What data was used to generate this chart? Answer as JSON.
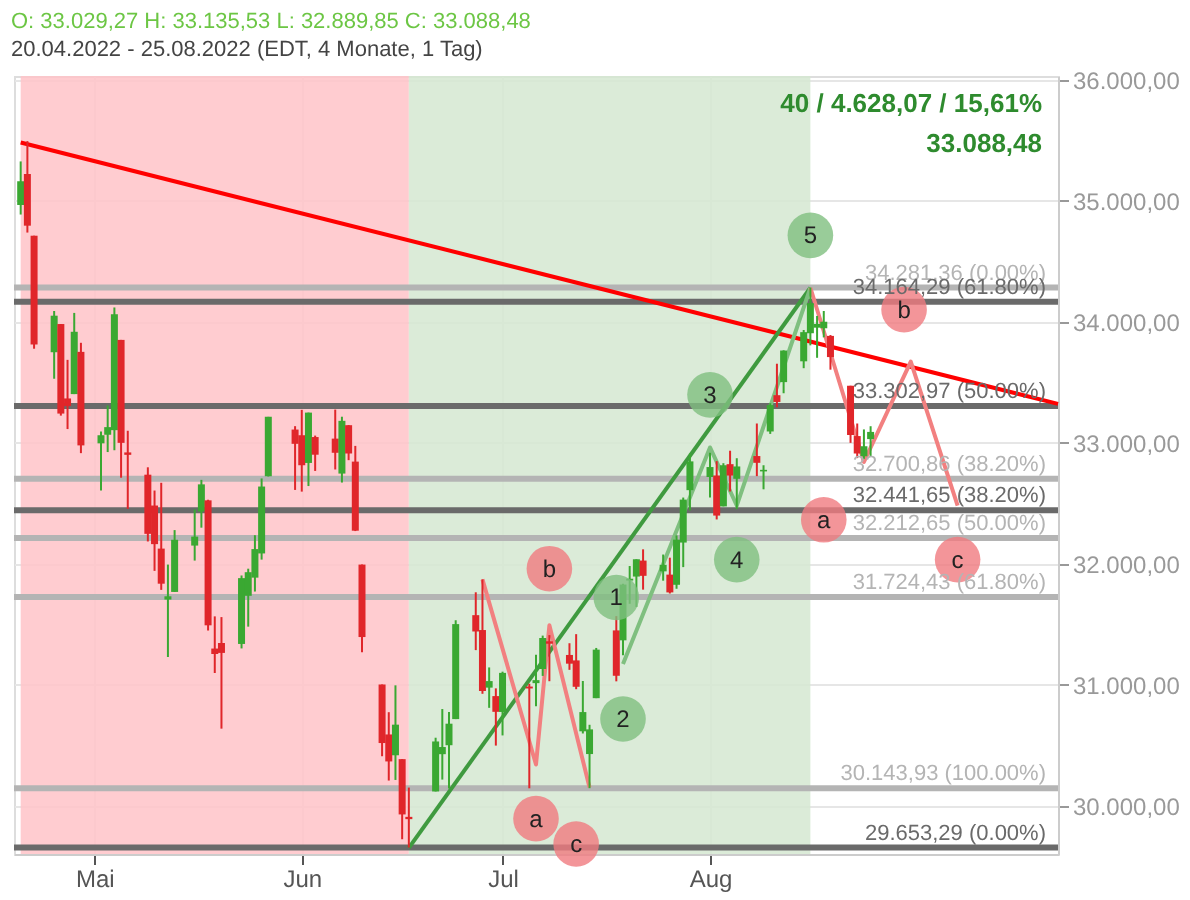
{
  "chart_data": {
    "type": "candlestick",
    "title": "O: 33.029,27  H: 33.135,53  L: 32.889,85  C: 33.088,48",
    "subtitle": "20.04.2022 - 25.08.2022   (EDT, 4 Monate, 1 Tag)",
    "x": [
      "2022-04-20",
      "2022-04-21",
      "2022-04-22",
      "2022-04-25",
      "2022-04-26",
      "2022-04-27",
      "2022-04-28",
      "2022-04-29",
      "2022-05-02",
      "2022-05-03",
      "2022-05-04",
      "2022-05-05",
      "2022-05-06",
      "2022-05-09",
      "2022-05-10",
      "2022-05-11",
      "2022-05-12",
      "2022-05-13",
      "2022-05-16",
      "2022-05-17",
      "2022-05-18",
      "2022-05-19",
      "2022-05-20",
      "2022-05-23",
      "2022-05-24",
      "2022-05-25",
      "2022-05-26",
      "2022-05-27",
      "2022-05-31",
      "2022-06-01",
      "2022-06-02",
      "2022-06-03",
      "2022-06-06",
      "2022-06-07",
      "2022-06-08",
      "2022-06-09",
      "2022-06-10",
      "2022-06-13",
      "2022-06-14",
      "2022-06-15",
      "2022-06-16",
      "2022-06-17",
      "2022-06-21",
      "2022-06-22",
      "2022-06-23",
      "2022-06-24",
      "2022-06-27",
      "2022-06-28",
      "2022-06-29",
      "2022-06-30",
      "2022-07-01",
      "2022-07-05",
      "2022-07-06",
      "2022-07-07",
      "2022-07-08",
      "2022-07-11",
      "2022-07-12",
      "2022-07-13",
      "2022-07-14",
      "2022-07-15",
      "2022-07-18",
      "2022-07-19",
      "2022-07-20",
      "2022-07-21",
      "2022-07-22",
      "2022-07-25",
      "2022-07-26",
      "2022-07-27",
      "2022-07-28",
      "2022-07-29",
      "2022-08-01",
      "2022-08-02",
      "2022-08-03",
      "2022-08-04",
      "2022-08-05",
      "2022-08-08",
      "2022-08-09",
      "2022-08-10",
      "2022-08-11",
      "2022-08-12",
      "2022-08-15",
      "2022-08-16",
      "2022-08-17",
      "2022-08-18",
      "2022-08-19",
      "2022-08-22",
      "2022-08-23",
      "2022-08-24",
      "2022-08-25"
    ],
    "ohlc": [
      [
        34963,
        35324,
        34885,
        35160
      ],
      [
        35220,
        35492,
        34736,
        34793
      ],
      [
        34710,
        34710,
        33776,
        33811
      ],
      [
        33747,
        34088,
        33528,
        34049
      ],
      [
        33980,
        33980,
        33223,
        33240
      ],
      [
        33365,
        33684,
        33112,
        33302
      ],
      [
        33401,
        34072,
        33401,
        33916
      ],
      [
        33750,
        33825,
        32913,
        32977
      ],
      [
        32994,
        33092,
        32604,
        33061
      ],
      [
        33065,
        33307,
        32922,
        33128
      ],
      [
        33103,
        34117,
        32937,
        34061
      ],
      [
        33849,
        33849,
        32710,
        32998
      ],
      [
        32919,
        33098,
        32452,
        32899
      ],
      [
        32735,
        32796,
        32183,
        32246
      ],
      [
        32480,
        32604,
        31940,
        32161
      ],
      [
        32124,
        32668,
        31783,
        31834
      ],
      [
        31703,
        31992,
        31228,
        31730
      ],
      [
        31766,
        32277,
        31766,
        32197
      ],
      [
        32149,
        32448,
        32025,
        32223
      ],
      [
        32431,
        32692,
        32297,
        32655
      ],
      [
        32523,
        32528,
        31447,
        31490
      ],
      [
        31298,
        31564,
        31096,
        31253
      ],
      [
        31344,
        31558,
        30636,
        31262
      ],
      [
        31336,
        31902,
        31299,
        31880
      ],
      [
        31734,
        31958,
        31479,
        31929
      ],
      [
        31884,
        32235,
        31769,
        32120
      ],
      [
        32084,
        32704,
        32033,
        32637
      ],
      [
        32721,
        33213,
        32720,
        33213
      ],
      [
        33108,
        33136,
        32609,
        32990
      ],
      [
        33061,
        33271,
        32595,
        32813
      ],
      [
        32832,
        33248,
        32641,
        33248
      ],
      [
        33046,
        33058,
        32766,
        32900
      ],
      [
        33033,
        33273,
        32778,
        32916
      ],
      [
        32744,
        33214,
        32670,
        33180
      ],
      [
        33144,
        33145,
        32855,
        32910
      ],
      [
        32843,
        32973,
        32269,
        32272
      ],
      [
        31992,
        31992,
        31268,
        31393
      ],
      [
        31001,
        31001,
        30408,
        30517
      ],
      [
        30588,
        30772,
        30207,
        30365
      ],
      [
        30416,
        30994,
        30212,
        30669
      ],
      [
        30384,
        30384,
        29722,
        29927
      ],
      [
        29907,
        30149,
        29653.29,
        29888
      ],
      [
        30117,
        30561,
        30117,
        30530
      ],
      [
        30425,
        30798,
        30215,
        30484
      ],
      [
        30499,
        30774,
        30142,
        30677
      ],
      [
        30715,
        31532,
        30715,
        31500
      ],
      [
        31574,
        31763,
        31285,
        31439
      ],
      [
        31451,
        31870,
        30924,
        30947
      ],
      [
        30975,
        31142,
        30808,
        31029
      ],
      [
        30905,
        30969,
        30496,
        30775
      ],
      [
        30774,
        31107,
        30580,
        31097
      ],
      [
        30984,
        31007,
        30143,
        30968
      ],
      [
        31012,
        31246,
        30822,
        31037
      ],
      [
        31129,
        31405,
        31072,
        31385
      ],
      [
        31358,
        31409,
        31028,
        31338
      ],
      [
        31245,
        31342,
        31122,
        31173
      ],
      [
        31200,
        31417,
        30962,
        30982
      ],
      [
        30614,
        31030,
        30596,
        30773
      ],
      [
        30426,
        30668,
        30144,
        30630
      ],
      [
        30888,
        31303,
        30888,
        31289
      ],
      [
        31448,
        31566,
        31027,
        31073
      ],
      [
        31366,
        31834,
        31243,
        31827
      ],
      [
        31860,
        31980,
        31668,
        31875
      ],
      [
        31893,
        32036,
        31642,
        32036
      ],
      [
        32025,
        32118,
        31785,
        31899
      ],
      [
        31936,
        32075,
        31859,
        31990
      ],
      [
        31909,
        32049,
        31753,
        31762
      ],
      [
        31825,
        32233,
        31792,
        32198
      ],
      [
        32174,
        32546,
        31971,
        32529
      ],
      [
        32607,
        32910,
        32440,
        32845
      ],
      [
        32716,
        32916,
        32547,
        32798
      ],
      [
        32728,
        32847,
        32365,
        32397
      ],
      [
        32473,
        32830,
        32473,
        32813
      ],
      [
        32822,
        32933,
        32596,
        32727
      ],
      [
        32701,
        32871,
        32450,
        32803
      ],
      [
        32889,
        33158,
        32723,
        32833
      ],
      [
        32762,
        32813,
        32614,
        32775
      ],
      [
        33092,
        33326,
        33072,
        33310
      ],
      [
        33392,
        33652,
        33292,
        33336
      ],
      [
        33500,
        33763,
        33408,
        33761
      ],
      [
        33672,
        33931,
        33615,
        33913
      ],
      [
        33904,
        34281.36,
        33804,
        34152
      ],
      [
        33950,
        34047,
        33701,
        33981
      ],
      [
        33945,
        34088,
        33870,
        33999
      ],
      [
        33882,
        33889,
        33603,
        33707
      ],
      [
        33470,
        33470,
        32998,
        33063
      ],
      [
        33054,
        33158,
        32872,
        32910
      ],
      [
        32887,
        33109,
        32866,
        32970
      ],
      [
        33029.27,
        33135.53,
        32889.85,
        33088.48
      ]
    ],
    "colors": [
      "#3aa832",
      "#e0262a",
      "#e0262a",
      "#3aa832",
      "#e0262a",
      "#e0262a",
      "#3aa832",
      "#e0262a",
      "#3aa832",
      "#3aa832",
      "#3aa832",
      "#e0262a",
      "#e0262a",
      "#e0262a",
      "#e0262a",
      "#e0262a",
      "#3aa832",
      "#3aa832",
      "#3aa832",
      "#3aa832",
      "#e0262a",
      "#e0262a",
      "#e0262a",
      "#3aa832",
      "#3aa832",
      "#3aa832",
      "#3aa832",
      "#3aa832",
      "#e0262a",
      "#e0262a",
      "#3aa832",
      "#e0262a",
      "#e0262a",
      "#3aa832",
      "#e0262a",
      "#e0262a",
      "#e0262a",
      "#e0262a",
      "#e0262a",
      "#3aa832",
      "#e0262a",
      "#e0262a",
      "#3aa832",
      "#3aa832",
      "#3aa832",
      "#3aa832",
      "#e0262a",
      "#e0262a",
      "#3aa832",
      "#e0262a",
      "#3aa832",
      "#e0262a",
      "#3aa832",
      "#3aa832",
      "#e0262a",
      "#e0262a",
      "#e0262a",
      "#3aa832",
      "#3aa832",
      "#3aa832",
      "#e0262a",
      "#3aa832",
      "#3aa832",
      "#3aa832",
      "#e0262a",
      "#3aa832",
      "#e0262a",
      "#3aa832",
      "#3aa832",
      "#3aa832",
      "#3aa832",
      "#e0262a",
      "#3aa832",
      "#e0262a",
      "#3aa832",
      "#e0262a",
      "#3aa832",
      "#3aa832",
      "#e0262a",
      "#3aa832",
      "#3aa832",
      "#3aa832",
      "#3aa832",
      "#3aa832",
      "#e0262a",
      "#e0262a",
      "#e0262a",
      "#3aa832",
      "#3aa832"
    ],
    "series": [
      {
        "type": "line",
        "color": "#ff0000",
        "x": [
          "2022-04-20",
          "2022-09-22"
        ],
        "values": [
          35480,
          33320
        ]
      },
      {
        "type": "line",
        "color": "#3f9a3f",
        "x": [
          "2022-06-17",
          "2022-08-16"
        ],
        "values": [
          29650,
          34280
        ]
      },
      {
        "type": "line",
        "color": "#7fbf7f",
        "x": [
          "2022-07-19",
          "2022-08-01",
          "2022-08-05",
          "2022-08-16"
        ],
        "values": [
          31170,
          32960,
          32480,
          34280
        ]
      },
      {
        "type": "line",
        "color": "#f28080",
        "x": [
          "2022-06-28",
          "2022-07-06",
          "2022-07-08",
          "2022-07-14"
        ],
        "values": [
          31870,
          30340,
          31490,
          30150
        ]
      },
      {
        "type": "line",
        "color": "#f28080",
        "x": [
          "2022-08-16",
          "2022-08-24",
          "2022-08-31",
          "2022-09-07"
        ],
        "values": [
          34280,
          32840,
          33670,
          32480
        ]
      }
    ],
    "bands": [
      {
        "axis": "x",
        "from": "2022-04-20",
        "to": "2022-06-17",
        "color": "#ffc3c8"
      },
      {
        "axis": "x",
        "from": "2022-06-17",
        "to": "2022-08-16",
        "color": "#d5e8d1"
      }
    ],
    "ref_lines": [
      {
        "axis": "y",
        "value": 34281.36,
        "label": "34.281,36 (0.00%)",
        "color": "#b4b4b4"
      },
      {
        "axis": "y",
        "value": 34164.29,
        "label": "34.164,29 (61.80%)",
        "color": "#6a6a6a"
      },
      {
        "axis": "y",
        "value": 33302.97,
        "label": "33.302,97 (50.00%)",
        "color": "#6a6a6a"
      },
      {
        "axis": "y",
        "value": 32700.86,
        "label": "32.700,86 (38.20%)",
        "color": "#b4b4b4"
      },
      {
        "axis": "y",
        "value": 32441.65,
        "label": "32.441,65 (38.20%)",
        "color": "#6a6a6a"
      },
      {
        "axis": "y",
        "value": 32212.65,
        "label": "32.212,65 (50.00%)",
        "color": "#b4b4b4"
      },
      {
        "axis": "y",
        "value": 31724.43,
        "label": "31.724,43 (61.80%)",
        "color": "#b4b4b4"
      },
      {
        "axis": "y",
        "value": 30143.93,
        "label": "30.143,93 (100.00%)",
        "color": "#b4b4b4"
      },
      {
        "axis": "y",
        "value": 29653.29,
        "label": "29.653,29 (0.00%)",
        "color": "#6a6a6a"
      }
    ],
    "annotations": [
      "40 / 4.628,07 / 15,61%",
      "33.088,48",
      {
        "text": "1",
        "x": "2022-07-18",
        "y": 31720
      },
      {
        "text": "2",
        "x": "2022-07-19",
        "y": 30716
      },
      {
        "text": "3",
        "x": "2022-08-01",
        "y": 33395
      },
      {
        "text": "4",
        "x": "2022-08-05",
        "y": 32033
      },
      {
        "text": "5",
        "x": "2022-08-16",
        "y": 34713
      },
      {
        "text": "a",
        "x": "2022-07-06",
        "y": 29892
      },
      {
        "text": "b",
        "x": "2022-07-08",
        "y": 31958
      },
      {
        "text": "c",
        "x": "2022-07-12",
        "y": 29683
      },
      {
        "text": "a",
        "x": "2022-08-18",
        "y": 32362
      },
      {
        "text": "b",
        "x": "2022-08-30",
        "y": 34099
      },
      {
        "text": "c",
        "x": "2022-09-07",
        "y": 32033
      }
    ],
    "xlim": [
      "2022-04-19",
      "2022-09-22"
    ],
    "xticks": [
      {
        "value": "2022-05-01",
        "label": "Mai"
      },
      {
        "value": "2022-06-01",
        "label": "Jun"
      },
      {
        "value": "2022-07-01",
        "label": "Jul"
      },
      {
        "value": "2022-08-01",
        "label": "Aug"
      }
    ],
    "ylim": [
      29600,
      36030
    ],
    "yticks": [
      {
        "value": 30000,
        "label": "30.000,00"
      },
      {
        "value": 31000,
        "label": "31.000,00"
      },
      {
        "value": 32000,
        "label": "32.000,00"
      },
      {
        "value": 33000,
        "label": "33.000,00"
      },
      {
        "value": 34000,
        "label": "34.000,00"
      },
      {
        "value": 35000,
        "label": "35.000,00"
      },
      {
        "value": 36000,
        "label": "36.000,00"
      }
    ],
    "grid": true
  }
}
